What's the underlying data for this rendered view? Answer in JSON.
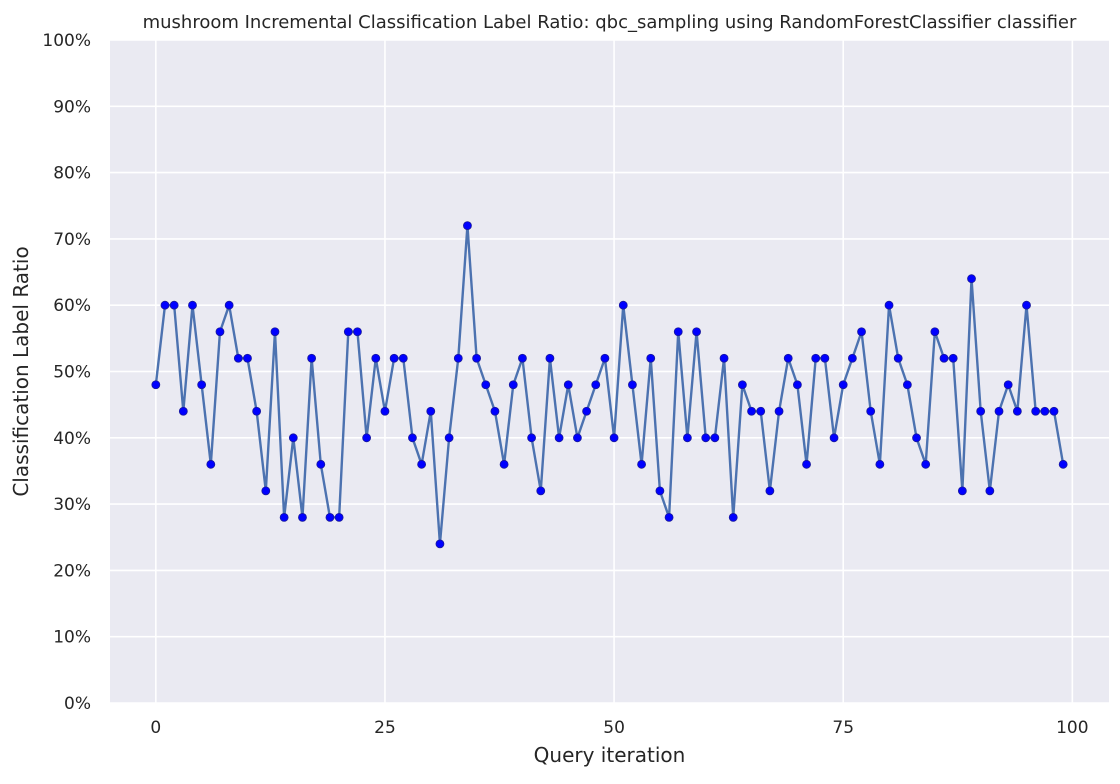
{
  "chart_data": {
    "type": "line",
    "title": "mushroom Incremental Classification Label Ratio: qbc_sampling using RandomForestClassifier classifier",
    "xlabel": "Query iteration",
    "ylabel": "Classification Label Ratio",
    "xlim": [
      -5,
      104
    ],
    "ylim": [
      0,
      1
    ],
    "x_ticks": [
      0,
      25,
      50,
      75,
      100
    ],
    "x_tick_labels": [
      "0",
      "25",
      "50",
      "75",
      "100"
    ],
    "y_ticks": [
      0,
      0.1,
      0.2,
      0.3,
      0.4,
      0.5,
      0.6,
      0.7,
      0.8,
      0.9,
      1.0
    ],
    "y_tick_labels": [
      "0%",
      "10%",
      "20%",
      "30%",
      "40%",
      "50%",
      "60%",
      "70%",
      "80%",
      "90%",
      "100%"
    ],
    "grid": true,
    "background_color": "#eaeaf2",
    "line_color": "#4c72b0",
    "marker_color": "#0000ff",
    "series": [
      {
        "x": [
          0,
          1,
          2,
          3,
          4,
          5,
          6,
          7,
          8,
          9,
          10,
          11,
          12,
          13,
          14,
          15,
          16,
          17,
          18,
          19,
          20,
          21,
          22,
          23,
          24,
          25,
          26,
          27,
          28,
          29,
          30,
          31,
          32,
          33,
          34,
          35,
          36,
          37,
          38,
          39,
          40,
          41,
          42,
          43,
          44,
          45,
          46,
          47,
          48,
          49,
          50,
          51,
          52,
          53,
          54,
          55,
          56,
          57,
          58,
          59,
          60,
          61,
          62,
          63,
          64,
          65,
          66,
          67,
          68,
          69,
          70,
          71,
          72,
          73,
          74,
          75,
          76,
          77,
          78,
          79,
          80,
          81,
          82,
          83,
          84,
          85,
          86,
          87,
          88,
          89,
          90,
          91,
          92,
          93,
          94,
          95,
          96,
          97,
          98,
          99
        ],
        "y": [
          0.48,
          0.6,
          0.6,
          0.44,
          0.6,
          0.48,
          0.36,
          0.56,
          0.6,
          0.52,
          0.52,
          0.44,
          0.32,
          0.56,
          0.28,
          0.4,
          0.28,
          0.52,
          0.36,
          0.28,
          0.28,
          0.56,
          0.56,
          0.4,
          0.52,
          0.44,
          0.52,
          0.52,
          0.4,
          0.36,
          0.44,
          0.24,
          0.4,
          0.52,
          0.72,
          0.52,
          0.48,
          0.44,
          0.36,
          0.48,
          0.52,
          0.4,
          0.32,
          0.52,
          0.4,
          0.48,
          0.4,
          0.44,
          0.48,
          0.52,
          0.4,
          0.6,
          0.48,
          0.36,
          0.52,
          0.32,
          0.28,
          0.56,
          0.4,
          0.56,
          0.4,
          0.4,
          0.52,
          0.28,
          0.48,
          0.44,
          0.44,
          0.32,
          0.44,
          0.52,
          0.48,
          0.36,
          0.52,
          0.52,
          0.4,
          0.48,
          0.52,
          0.56,
          0.44,
          0.36,
          0.6,
          0.52,
          0.48,
          0.4,
          0.36,
          0.56,
          0.52,
          0.52,
          0.32,
          0.64,
          0.44,
          0.32,
          0.44,
          0.48,
          0.44,
          0.6,
          0.44,
          0.44,
          0.44,
          0.36
        ]
      }
    ]
  }
}
